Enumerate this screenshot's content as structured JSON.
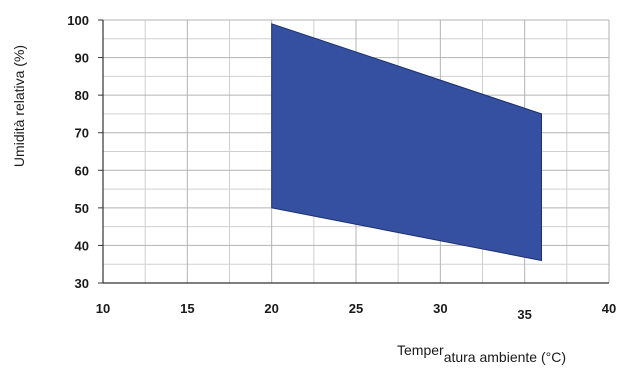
{
  "chart_data": {
    "type": "area",
    "xlabel_parts": [
      "Temper",
      "atura ambiente (°C)"
    ],
    "ylabel": "Umidità relativa (%)",
    "xlim": [
      10,
      40
    ],
    "ylim": [
      30,
      100
    ],
    "x_ticks": [
      "10",
      "15",
      "20",
      "25",
      "30",
      "35",
      "40"
    ],
    "y_ticks": [
      "30",
      "40",
      "50",
      "60",
      "70",
      "80",
      "90",
      "100"
    ],
    "grid": true,
    "series": [
      {
        "polygon": [
          {
            "x": 20,
            "y": 99
          },
          {
            "x": 36,
            "y": 75
          },
          {
            "x": 36,
            "y": 36
          },
          {
            "x": 20,
            "y": 50
          }
        ],
        "color": "#3550a0",
        "stroke": "#1e2f6e"
      }
    ]
  }
}
